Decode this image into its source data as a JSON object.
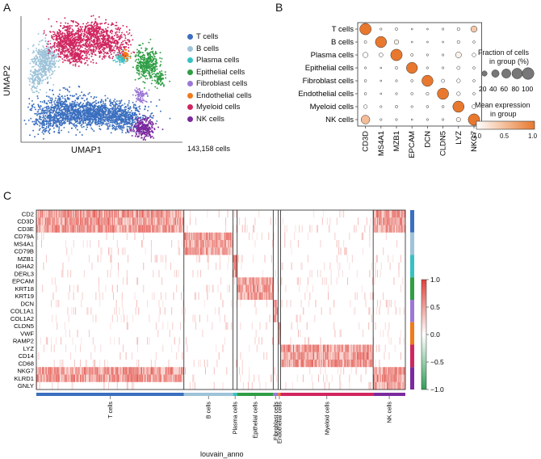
{
  "panels": {
    "a": "A",
    "b": "B",
    "c": "C"
  },
  "chart_data": [
    {
      "type": "scatter",
      "title": "",
      "xlabel": "UMAP1",
      "ylabel": "UMAP2",
      "cell_count_label": "143,158 cells",
      "legend": [
        {
          "label": "T cells",
          "color": "#3b6fbf"
        },
        {
          "label": "B cells",
          "color": "#9ec3d9"
        },
        {
          "label": "Plasma cells",
          "color": "#39c0c3"
        },
        {
          "label": "Epithelial cells",
          "color": "#2f9e45"
        },
        {
          "label": "Fibroblast cells",
          "color": "#9b78d6"
        },
        {
          "label": "Endothelial cells",
          "color": "#f07a1c"
        },
        {
          "label": "Myeloid cells",
          "color": "#d0265f"
        },
        {
          "label": "NK cells",
          "color": "#7b2a9e"
        }
      ]
    },
    {
      "type": "scatter",
      "subtype": "dotplot",
      "rows": [
        "T cells",
        "B cells",
        "Plasma cells",
        "Epithelial cells",
        "Fibroblast cells",
        "Endothelial cells",
        "Myeloid cells",
        "NK cells"
      ],
      "columns": [
        "CD3D",
        "MS4A1",
        "MZB1",
        "EPCAM",
        "DCN",
        "CLDN5",
        "LYZ",
        "NKG7"
      ],
      "fraction": [
        [
          95,
          3,
          5,
          2,
          2,
          3,
          6,
          28
        ],
        [
          5,
          90,
          15,
          2,
          2,
          2,
          6,
          4
        ],
        [
          20,
          12,
          96,
          5,
          3,
          3,
          25,
          10
        ],
        [
          3,
          2,
          5,
          88,
          3,
          3,
          8,
          4
        ],
        [
          4,
          2,
          3,
          4,
          90,
          8,
          10,
          4
        ],
        [
          4,
          2,
          3,
          4,
          6,
          92,
          10,
          4
        ],
        [
          10,
          3,
          5,
          3,
          4,
          4,
          92,
          12
        ],
        [
          55,
          3,
          3,
          2,
          3,
          3,
          14,
          96
        ]
      ],
      "expression": [
        [
          1.0,
          0.0,
          0.0,
          0.0,
          0.0,
          0.0,
          0.0,
          0.4
        ],
        [
          0.0,
          1.0,
          0.1,
          0.0,
          0.0,
          0.0,
          0.0,
          0.0
        ],
        [
          0.0,
          0.0,
          1.0,
          0.0,
          0.0,
          0.0,
          0.1,
          0.0
        ],
        [
          0.0,
          0.0,
          0.0,
          1.0,
          0.0,
          0.0,
          0.0,
          0.0
        ],
        [
          0.0,
          0.0,
          0.0,
          0.0,
          1.0,
          0.0,
          0.0,
          0.0
        ],
        [
          0.0,
          0.0,
          0.0,
          0.0,
          0.0,
          1.0,
          0.0,
          0.0
        ],
        [
          0.0,
          0.0,
          0.0,
          0.0,
          0.0,
          0.0,
          1.0,
          0.0
        ],
        [
          0.5,
          0.0,
          0.0,
          0.0,
          0.0,
          0.0,
          0.1,
          1.0
        ]
      ],
      "size_legend": {
        "title_line1": "Fraction of cells",
        "title_line2": "in group (%)",
        "values": [
          20,
          40,
          60,
          80,
          100
        ],
        "value_labels": [
          "20",
          "40",
          "60",
          "80",
          "100"
        ]
      },
      "color_legend": {
        "title_line1": "Mean expression",
        "title_line2": "in group",
        "range": [
          0.0,
          1.0
        ],
        "ticks": [
          "0.0",
          "0.5",
          "1.0"
        ],
        "low_color": "#ffffff",
        "high_color": "#e8782e"
      }
    },
    {
      "type": "heatmap",
      "xlabel": "louvain_anno",
      "genes": [
        "CD2",
        "CD3D",
        "CD3E",
        "CD79A",
        "MS4A1",
        "CD79B",
        "MZB1",
        "IGHA2",
        "DERL3",
        "EPCAM",
        "KRT18",
        "KRT19",
        "DCN",
        "COL1A1",
        "COL1A2",
        "CLDN5",
        "VWF",
        "RAMP2",
        "LYZ",
        "CD14",
        "CD68",
        "NKG7",
        "KLRD1",
        "GNLY"
      ],
      "groups": [
        {
          "label": "T cells",
          "color": "#3b6fbf",
          "fraction": 0.3999,
          "genes": [
            0,
            1,
            2,
            21,
            22
          ]
        },
        {
          "label": "B cells",
          "color": "#9ec3d9",
          "fraction": 0.1332,
          "genes": [
            3,
            4,
            5
          ]
        },
        {
          "label": "Plasma cells",
          "color": "#39c0c3",
          "fraction": 0.0111,
          "genes": [
            6,
            7,
            8
          ]
        },
        {
          "label": "Epithelial cells",
          "color": "#2f9e45",
          "fraction": 0.0977,
          "genes": [
            9,
            10,
            11
          ]
        },
        {
          "label": "Fibroblast cells",
          "color": "#9b78d6",
          "fraction": 0.0133,
          "genes": [
            12,
            13,
            14
          ]
        },
        {
          "label": "Endothelial cells",
          "color": "#f07a1c",
          "fraction": 0.0067,
          "genes": [
            15,
            16,
            17
          ]
        },
        {
          "label": "Myeloid cells",
          "color": "#d0265f",
          "fraction": 0.2509,
          "genes": [
            18,
            19,
            20
          ]
        },
        {
          "label": "NK cells",
          "color": "#7b2a9e",
          "fraction": 0.0871,
          "genes": [
            21,
            22,
            23,
            0,
            1,
            2
          ]
        }
      ],
      "colorbar": {
        "range": [
          -1.0,
          1.0
        ],
        "ticks": [
          "1.0",
          "0.5",
          "0.0",
          "−0.5",
          "−1.0"
        ],
        "high_color": "#e0413a",
        "mid_color": "#ffffff",
        "low_color": "#2f9e58"
      }
    }
  ]
}
